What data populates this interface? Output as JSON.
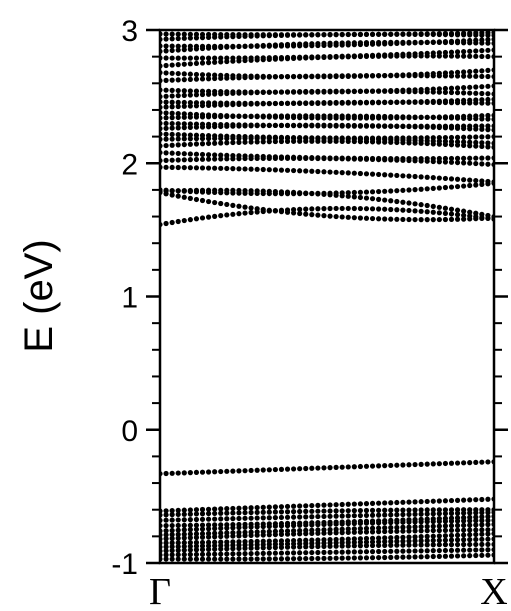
{
  "chart_data": {
    "type": "scatter",
    "title": "",
    "xlabel": "",
    "ylabel": "E (eV)",
    "ylim": [
      -1,
      3
    ],
    "y_ticks": [
      {
        "value": 3,
        "label": "3"
      },
      {
        "value": 2,
        "label": "2"
      },
      {
        "value": 1,
        "label": "1"
      },
      {
        "value": 0,
        "label": "0"
      },
      {
        "value": -1,
        "label": "-1"
      }
    ],
    "y_minor_step": 0.2,
    "x_ticks": [
      {
        "value": 0,
        "label": "Γ"
      },
      {
        "value": 1,
        "label": "X"
      }
    ],
    "xlim": [
      0,
      1
    ],
    "grid": false,
    "legend": "none",
    "marker_color": "#000000",
    "points_per_band": 56,
    "series": [
      {
        "e_gamma": 1.54,
        "e_x": 1.58,
        "bow": 0.1
      },
      {
        "e_gamma": 1.78,
        "e_x": 1.59,
        "bow": -0.08
      },
      {
        "e_gamma": 1.79,
        "e_x": 1.6,
        "bow": 0.07
      },
      {
        "e_gamma": 1.8,
        "e_x": 1.85,
        "bow": -0.05
      },
      {
        "e_gamma": 1.97,
        "e_x": 1.86,
        "bow": 0.02
      },
      {
        "e_gamma": 2.02,
        "e_x": 1.99,
        "bow": 0.03
      },
      {
        "e_gamma": 2.08,
        "e_x": 2.04,
        "bow": -0.02
      },
      {
        "e_gamma": 2.13,
        "e_x": 2.12,
        "bow": 0.04
      },
      {
        "e_gamma": 2.18,
        "e_x": 2.15,
        "bow": 0.02
      },
      {
        "e_gamma": 2.22,
        "e_x": 2.2,
        "bow": -0.02
      },
      {
        "e_gamma": 2.26,
        "e_x": 2.25,
        "bow": 0.03
      },
      {
        "e_gamma": 2.3,
        "e_x": 2.28,
        "bow": -0.01
      },
      {
        "e_gamma": 2.34,
        "e_x": 2.33,
        "bow": 0.02
      },
      {
        "e_gamma": 2.38,
        "e_x": 2.36,
        "bow": -0.03
      },
      {
        "e_gamma": 2.42,
        "e_x": 2.45,
        "bow": 0.02
      },
      {
        "e_gamma": 2.46,
        "e_x": 2.48,
        "bow": -0.02
      },
      {
        "e_gamma": 2.5,
        "e_x": 2.52,
        "bow": 0.03
      },
      {
        "e_gamma": 2.55,
        "e_x": 2.58,
        "bow": -0.03
      },
      {
        "e_gamma": 2.62,
        "e_x": 2.65,
        "bow": 0.02
      },
      {
        "e_gamma": 2.68,
        "e_x": 2.7,
        "bow": -0.04
      },
      {
        "e_gamma": 2.73,
        "e_x": 2.8,
        "bow": 0.03
      },
      {
        "e_gamma": 2.79,
        "e_x": 2.85,
        "bow": -0.02
      },
      {
        "e_gamma": 2.84,
        "e_x": 2.9,
        "bow": 0.03
      },
      {
        "e_gamma": 2.88,
        "e_x": 2.93,
        "bow": -0.02
      },
      {
        "e_gamma": 2.93,
        "e_x": 2.96,
        "bow": 0.02
      },
      {
        "e_gamma": 2.97,
        "e_x": 2.98,
        "bow": -0.01
      },
      {
        "e_gamma": -0.33,
        "e_x": -0.24,
        "bow": 0.0
      },
      {
        "e_gamma": -0.61,
        "e_x": -0.52,
        "bow": 0.0
      },
      {
        "e_gamma": -0.64,
        "e_x": -0.6,
        "bow": 0.01
      },
      {
        "e_gamma": -0.68,
        "e_x": -0.62,
        "bow": 0.0
      },
      {
        "e_gamma": -0.72,
        "e_x": -0.65,
        "bow": -0.01
      },
      {
        "e_gamma": -0.76,
        "e_x": -0.68,
        "bow": 0.01
      },
      {
        "e_gamma": -0.79,
        "e_x": -0.71,
        "bow": 0.0
      },
      {
        "e_gamma": -0.82,
        "e_x": -0.75,
        "bow": 0.01
      },
      {
        "e_gamma": -0.85,
        "e_x": -0.78,
        "bow": -0.01
      },
      {
        "e_gamma": -0.88,
        "e_x": -0.82,
        "bow": 0.0
      },
      {
        "e_gamma": -0.91,
        "e_x": -0.86,
        "bow": 0.01
      },
      {
        "e_gamma": -0.94,
        "e_x": -0.9,
        "bow": 0.0
      },
      {
        "e_gamma": -0.97,
        "e_x": -0.94,
        "bow": -0.01
      }
    ]
  }
}
